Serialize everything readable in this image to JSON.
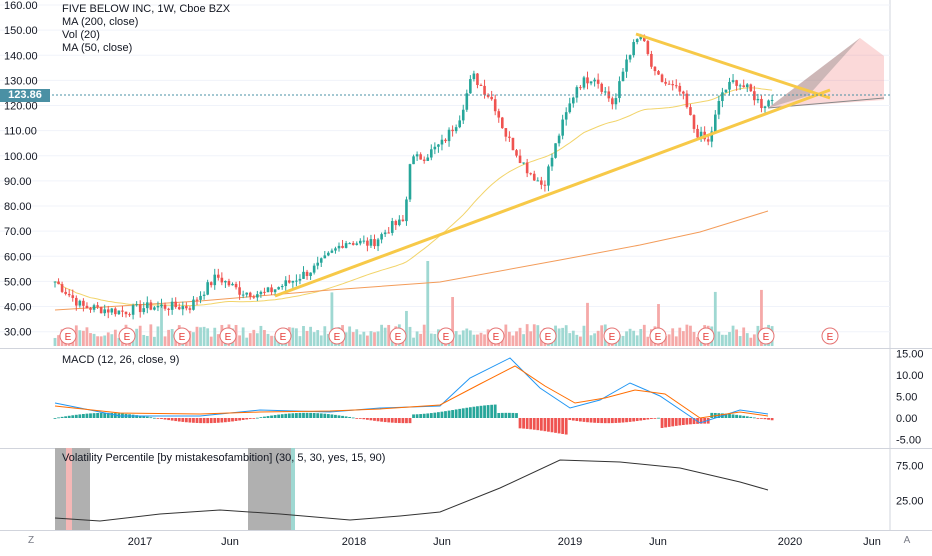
{
  "main_legend": {
    "title": "FIVE BELOW INC, 1W, Cboe BZX",
    "ma200": "MA (200, close)",
    "vol": "Vol (20)",
    "ma50": "MA (50, close)"
  },
  "current_price": "123.86",
  "price_axis": [
    "160.00",
    "150.00",
    "140.00",
    "130.00",
    "120.00",
    "110.00",
    "100.00",
    "90.00",
    "80.00",
    "70.00",
    "60.00",
    "50.00",
    "40.00",
    "30.00"
  ],
  "macd": {
    "label": "MACD (12, 26, close, 9)",
    "axis": [
      "15.00",
      "10.00",
      "5.00",
      "0.00",
      "-5.00"
    ]
  },
  "volatility": {
    "label": "Volatility Percentile [by mistakesofambition] (30, 5, 30, yes, 15, 90)",
    "axis": [
      "75.00",
      "25.00"
    ]
  },
  "time_axis": [
    "2017",
    "Jun",
    "2018",
    "Jun",
    "2019",
    "Jun",
    "2020",
    "Jun"
  ],
  "earnings_marker": "E",
  "corner_left": "Z",
  "corner_right": "A",
  "colors": {
    "up": "#26a69a",
    "down": "#ef5350",
    "trendline": "#f7c948",
    "ma200": "#f39c5a",
    "ma50": "#f2d46a",
    "macd_line": "#2196f3",
    "signal_line": "#ff6d00",
    "vol_line": "#333333"
  }
}
